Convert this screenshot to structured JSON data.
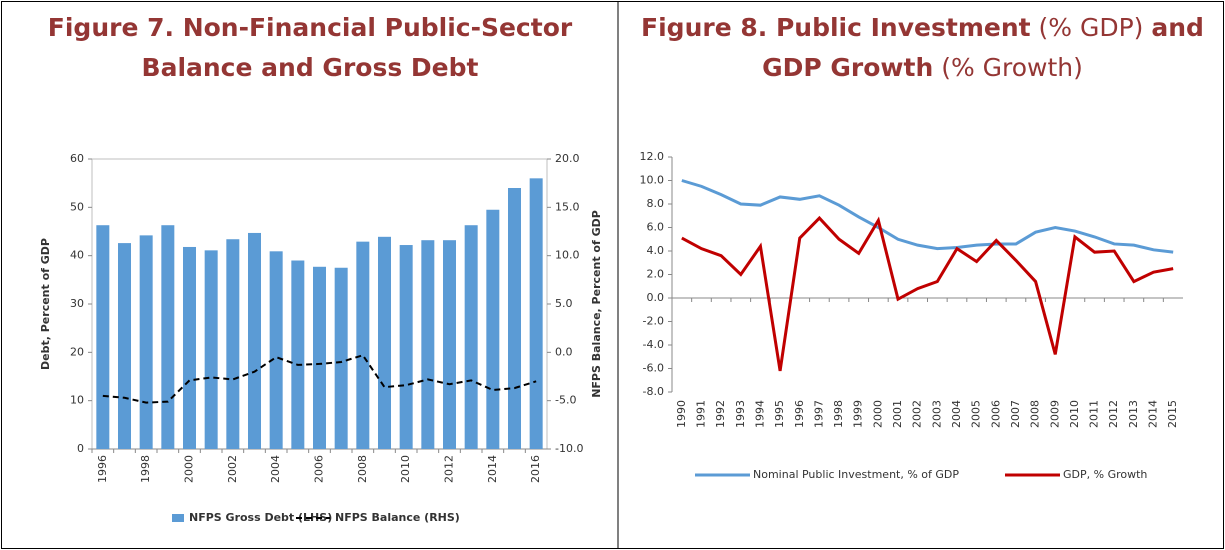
{
  "chart_data": [
    {
      "type": "bar",
      "title": "Figure 7. Non-Financial Public-Sector Balance and Gross Debt",
      "ylabel": "Debt, Percent of GDP",
      "y2label": "NFPS Balance, Percent of GDP",
      "categories": [
        "1996",
        null,
        "1998",
        null,
        "2000",
        null,
        "2002",
        null,
        "2004",
        null,
        "2006",
        null,
        "2008",
        null,
        "2010",
        null,
        "2012",
        null,
        "2014",
        null,
        "2016"
      ],
      "series": [
        {
          "name": "NFPS Gross Debt (LHS)",
          "type": "bar",
          "color": "#5b9bd5",
          "values": [
            46.3,
            42.6,
            44.2,
            46.3,
            41.8,
            41.1,
            43.4,
            44.7,
            40.9,
            39.0,
            37.7,
            37.5,
            42.9,
            43.9,
            42.2,
            43.2,
            43.2,
            46.3,
            49.5,
            54.0,
            56.0
          ]
        },
        {
          "name": "NFPS Balance (RHS)",
          "type": "line",
          "axis": "y2",
          "color": "#000000",
          "dashed": true,
          "values": [
            -4.5,
            -4.7,
            -5.2,
            -5.1,
            -2.9,
            -2.6,
            -2.8,
            -2.0,
            -0.5,
            -1.3,
            -1.2,
            -1.0,
            -0.3,
            -3.6,
            -3.4,
            -2.8,
            -3.3,
            -2.9,
            -3.9,
            -3.7,
            -3.0
          ]
        }
      ],
      "ylim": [
        0,
        60
      ],
      "yticks": [
        0,
        10,
        20,
        30,
        40,
        50,
        60
      ],
      "y2lim": [
        -10,
        20
      ],
      "y2ticks": [
        {
          "value": -10,
          "label": "-10.0"
        },
        {
          "value": -5,
          "label": "-5.0"
        },
        {
          "value": 0,
          "label": "0.0"
        },
        {
          "value": 5,
          "label": "5.0"
        },
        {
          "value": 10,
          "label": "10.0"
        },
        {
          "value": 15,
          "label": "15.0"
        },
        {
          "value": 20,
          "label": "20.0"
        }
      ],
      "legend": "bottom"
    },
    {
      "type": "line",
      "title_parts": [
        {
          "text": "Figure 8. Public Investment",
          "bold": true
        },
        {
          "text": " (% GDP) ",
          "bold": false
        },
        {
          "text": "and",
          "bold": true
        },
        {
          "text": "GDP Growth",
          "bold": true
        },
        {
          "text": " (% Growth)",
          "bold": false
        }
      ],
      "categories": [
        "1990",
        "1991",
        "1992",
        "1993",
        "1994",
        "1995",
        "1996",
        "1997",
        "1998",
        "1999",
        "2000",
        "2001",
        "2002",
        "2003",
        "2004",
        "2005",
        "2006",
        "2007",
        "2008",
        "2009",
        "2010",
        "2011",
        "2012",
        "2013",
        "2014",
        "2015"
      ],
      "series": [
        {
          "name": "Nominal Public Investment, % of GDP",
          "type": "line",
          "color": "#5b9bd5",
          "values": [
            10.0,
            9.5,
            8.8,
            8.0,
            7.9,
            8.6,
            8.4,
            8.7,
            7.9,
            6.9,
            6.0,
            5.0,
            4.5,
            4.2,
            4.3,
            4.5,
            4.6,
            4.6,
            5.6,
            6.0,
            5.7,
            5.2,
            4.6,
            4.5,
            4.1,
            3.9
          ]
        },
        {
          "name": "GDP, % Growth",
          "type": "line",
          "color": "#c00000",
          "values": [
            5.1,
            4.2,
            3.6,
            2.0,
            4.4,
            -6.2,
            5.1,
            6.8,
            5.0,
            3.8,
            6.6,
            -0.1,
            0.8,
            1.4,
            4.2,
            3.1,
            4.9,
            3.2,
            1.4,
            -4.8,
            5.2,
            3.9,
            4.0,
            1.4,
            2.2,
            2.5
          ]
        }
      ],
      "ylim": [
        -8,
        12
      ],
      "yticks": [
        {
          "value": -8,
          "label": "-8.0"
        },
        {
          "value": -6,
          "label": "-6.0"
        },
        {
          "value": -4,
          "label": "-4.0"
        },
        {
          "value": -2,
          "label": "-2.0"
        },
        {
          "value": 0,
          "label": "0.0"
        },
        {
          "value": 2,
          "label": "2.0"
        },
        {
          "value": 4,
          "label": "4.0"
        },
        {
          "value": 6,
          "label": "6.0"
        },
        {
          "value": 8,
          "label": "8.0"
        },
        {
          "value": 10,
          "label": "10.0"
        },
        {
          "value": 12,
          "label": "12.0"
        }
      ],
      "legend": "bottom"
    }
  ]
}
